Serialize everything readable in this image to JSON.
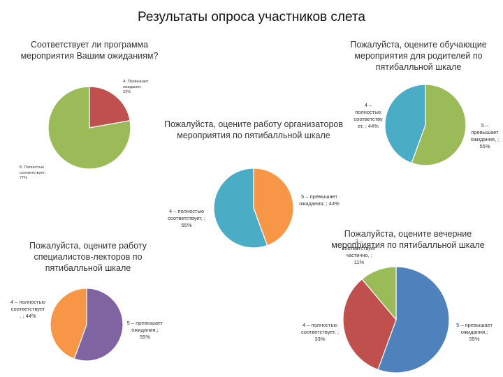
{
  "main_title": "Результаты опроса участников слета",
  "chart_data": [
    {
      "type": "pie",
      "title": "Соответствует ли программа мероприятия Вашим ожиданиям?",
      "slices": [
        {
          "label": "А. Превышает ожидания;",
          "value_label": "22%",
          "value": 22,
          "color": "#c0504d"
        },
        {
          "label": "Б. Полностью соответствует;",
          "value_label": "77%",
          "value": 77,
          "color": "#9bbb59"
        }
      ]
    },
    {
      "type": "pie",
      "title": "Пожалуйста, оцените обучающие мероприятия для родителей по пятибалльной шкале",
      "slices": [
        {
          "label": "5 – превышает ожидания, ;",
          "value_label": "55%",
          "value": 55,
          "color": "#9bbb59"
        },
        {
          "label": "4 – полностью соответству ет, ;",
          "value_label": "44%",
          "value": 44,
          "color": "#4bacc6"
        }
      ]
    },
    {
      "type": "pie",
      "title": "Пожалуйста, оцените работу организаторов мероприятия по пятибалльной шкале",
      "slices": [
        {
          "label": "5 – превышает ожидания, ;",
          "value_label": "44%",
          "value": 44,
          "color": "#f79646"
        },
        {
          "label": "4 – полностью соответствует, ;",
          "value_label": "55%",
          "value": 55,
          "color": "#4bacc6"
        }
      ]
    },
    {
      "type": "pie",
      "title": "Пожалуйста, оцените работу специалистов-лекторов по пятибалльной шкале",
      "slices": [
        {
          "label": "5 – превышает ожидания,;",
          "value_label": "55%",
          "value": 55,
          "color": "#8064a2"
        },
        {
          "label": "4 – полностью соответствует , ;",
          "value_label": "44%",
          "value": 44,
          "color": "#f79646"
        }
      ]
    },
    {
      "type": "pie",
      "title": "Пожалуйста, оцените вечерние мероприятия по пятибалльной шкале",
      "slices": [
        {
          "label": "5 – превышает ожидания,;",
          "value_label": "55%",
          "value": 55,
          "color": "#4f81bd"
        },
        {
          "label": "4 – полностью соответствует, ;",
          "value_label": "33%",
          "value": 33,
          "color": "#c0504d"
        },
        {
          "label": "3 – соответствует частично, ;",
          "value_label": "11%",
          "value": 11,
          "color": "#9bbb59"
        }
      ]
    }
  ]
}
